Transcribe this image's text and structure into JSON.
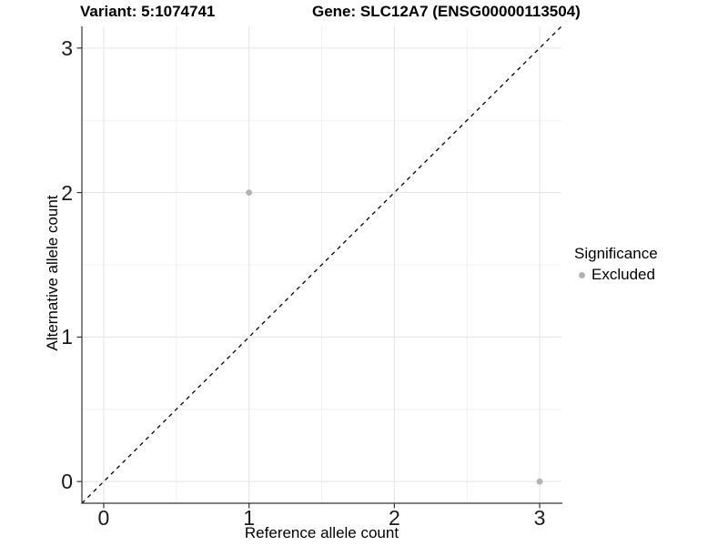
{
  "title": {
    "variant": "Variant: 5:1074741",
    "gene": "Gene: SLC12A7 (ENSG00000113504)"
  },
  "legend": {
    "title": "Significance",
    "items": [
      {
        "label": "Excluded",
        "color": "#b3b3b3"
      }
    ]
  },
  "colors": {
    "background": "#ffffff",
    "grid_major": "#e3e3e3",
    "grid_minor": "#f0f0f0",
    "axis": "#333333",
    "tick_text": "#1a1a1a",
    "reference_line": "#000000",
    "point": "#b3b3b3"
  },
  "chart_data": {
    "type": "scatter",
    "title": "Variant: 5:1074741   Gene: SLC12A7 (ENSG00000113504)",
    "xlabel": "Reference allele count",
    "ylabel": "Alternative allele count",
    "xlim": [
      -0.15,
      3.15
    ],
    "ylim": [
      -0.15,
      3.15
    ],
    "x_ticks": [
      0,
      1,
      2,
      3
    ],
    "y_ticks": [
      0,
      1,
      2,
      3
    ],
    "grid": "major-and-minor",
    "legend_position": "right",
    "legend_title": "Significance",
    "series": [
      {
        "name": "Excluded",
        "color": "#b3b3b3",
        "points": [
          {
            "x": 1,
            "y": 2
          },
          {
            "x": 3,
            "y": 0
          }
        ]
      }
    ],
    "reference_line": {
      "kind": "identity y=x",
      "style": "dashed",
      "color": "#000000"
    }
  }
}
